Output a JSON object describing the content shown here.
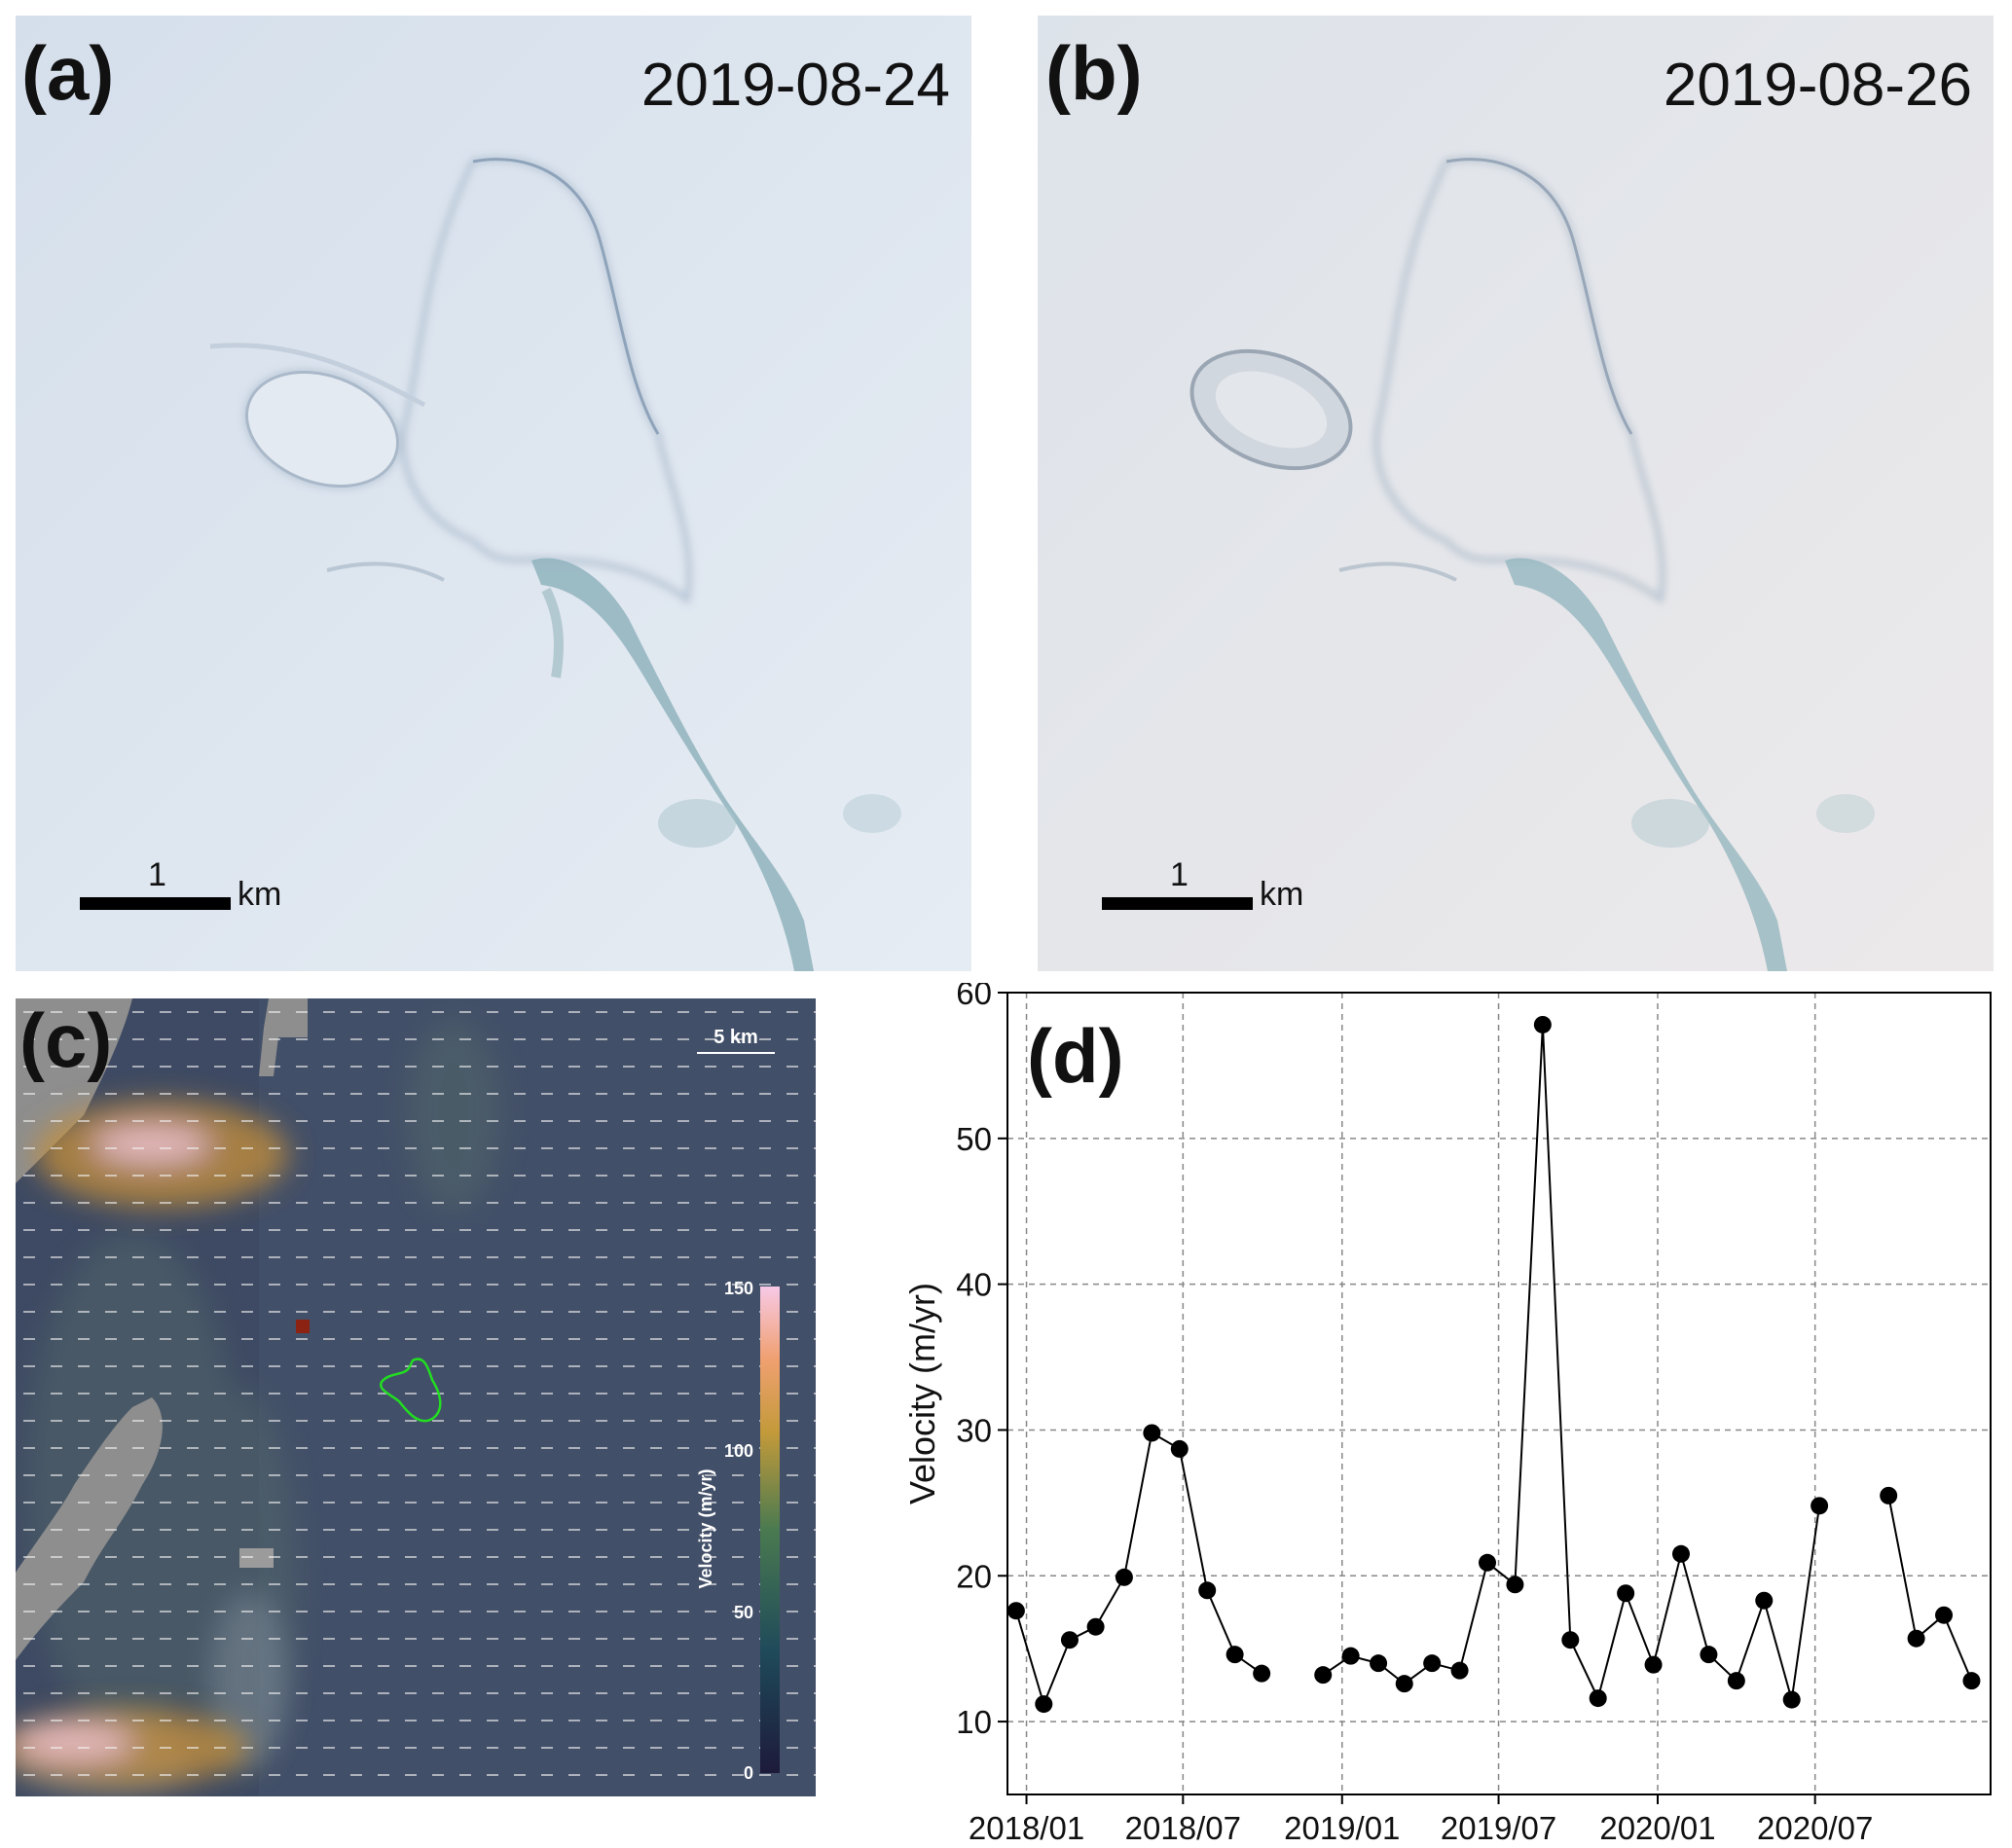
{
  "panel_a": {
    "label": "(a)",
    "date": "2019-08-24",
    "scale_number": "1",
    "scale_unit": "km"
  },
  "panel_b": {
    "label": "(b)",
    "date": "2019-08-26",
    "scale_number": "1",
    "scale_unit": "km"
  },
  "panel_c": {
    "label": "(c)",
    "scale_label": "5 km",
    "colorbar": {
      "title": "Velocity (m/yr)",
      "ticks": [
        "150",
        "100",
        "50",
        "0"
      ]
    }
  },
  "colors": {
    "ice": "#dfe7f0",
    "meltwater": "#7fa9b3",
    "outline": "#22dd22",
    "marker": "#8b2212"
  },
  "chart_data": {
    "type": "scatter",
    "panel_label": "(d)",
    "ylabel": "Velocity (m/yr)",
    "xlabel": "",
    "ylim": [
      5,
      60
    ],
    "yticks": [
      10,
      20,
      30,
      40,
      50,
      60
    ],
    "xlim": [
      "2017-12-10",
      "2021-01-20"
    ],
    "xticks": [
      "2018/01",
      "2018/07",
      "2019/01",
      "2019/07",
      "2020/01",
      "2020/07"
    ],
    "grid": true,
    "segments": [
      [
        {
          "x": "2017-12-20",
          "y": 17.6
        },
        {
          "x": "2018-01-21",
          "y": 11.2
        },
        {
          "x": "2018-02-20",
          "y": 15.6
        },
        {
          "x": "2018-03-22",
          "y": 16.5
        },
        {
          "x": "2018-04-24",
          "y": 19.9
        },
        {
          "x": "2018-05-26",
          "y": 29.8
        },
        {
          "x": "2018-06-27",
          "y": 28.7
        },
        {
          "x": "2018-07-29",
          "y": 19.0
        },
        {
          "x": "2018-08-30",
          "y": 14.6
        },
        {
          "x": "2018-09-30",
          "y": 13.3
        }
      ],
      [
        {
          "x": "2018-12-10",
          "y": 13.2
        },
        {
          "x": "2019-01-11",
          "y": 14.5
        },
        {
          "x": "2019-02-12",
          "y": 14.0
        },
        {
          "x": "2019-03-14",
          "y": 12.6
        },
        {
          "x": "2019-04-15",
          "y": 14.0
        },
        {
          "x": "2019-05-17",
          "y": 13.5
        },
        {
          "x": "2019-06-18",
          "y": 20.9
        },
        {
          "x": "2019-07-20",
          "y": 19.4
        },
        {
          "x": "2019-08-21",
          "y": 57.8
        },
        {
          "x": "2019-09-22",
          "y": 15.6
        },
        {
          "x": "2019-10-24",
          "y": 11.6
        },
        {
          "x": "2019-11-25",
          "y": 18.8
        },
        {
          "x": "2019-12-27",
          "y": 13.9
        },
        {
          "x": "2020-01-28",
          "y": 21.5
        },
        {
          "x": "2020-02-29",
          "y": 14.6
        },
        {
          "x": "2020-04-01",
          "y": 12.8
        },
        {
          "x": "2020-05-03",
          "y": 18.3
        },
        {
          "x": "2020-06-04",
          "y": 11.5
        },
        {
          "x": "2020-07-06",
          "y": 24.8
        }
      ],
      [
        {
          "x": "2020-09-24",
          "y": 25.5
        },
        {
          "x": "2020-10-26",
          "y": 15.7
        },
        {
          "x": "2020-11-27",
          "y": 17.3
        },
        {
          "x": "2020-12-29",
          "y": 12.8
        }
      ]
    ]
  }
}
